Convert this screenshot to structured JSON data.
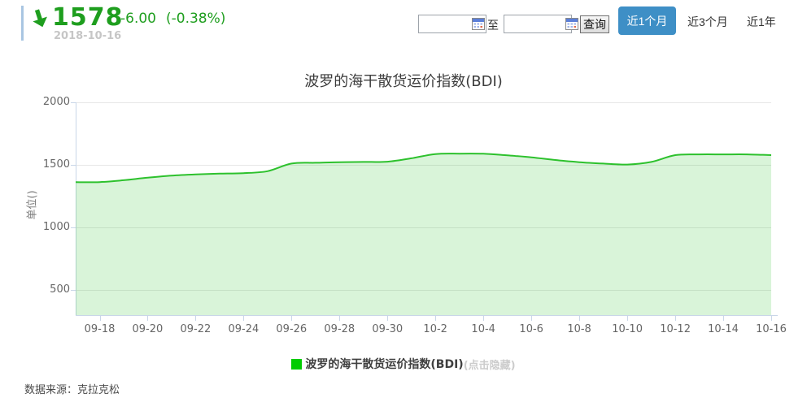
{
  "header": {
    "value": "1578",
    "change": "-6.00",
    "change_pct": "(-0.38%)",
    "date": "2018-10-16",
    "trend": "down",
    "green_color": "#1E9E1E"
  },
  "toolbar": {
    "date_from_value": "",
    "date_to_value": "",
    "to_label": "至",
    "query_label": "查询",
    "range_buttons": [
      {
        "label": "近1个月",
        "active": true
      },
      {
        "label": "近3个月",
        "active": false
      },
      {
        "label": "近1年",
        "active": false
      }
    ],
    "active_button_color": "#3E8FC6"
  },
  "chart_data": {
    "type": "area",
    "title": "波罗的海干散货运价指数(BDI)",
    "ylabel": "单位()",
    "x": [
      "09-17",
      "09-18",
      "09-19",
      "09-20",
      "09-21",
      "09-22",
      "09-23",
      "09-24",
      "09-25",
      "09-26",
      "09-27",
      "09-28",
      "09-29",
      "09-30",
      "10-1",
      "10-2",
      "10-3",
      "10-4",
      "10-5",
      "10-6",
      "10-7",
      "10-8",
      "10-9",
      "10-10",
      "10-11",
      "10-12",
      "10-13",
      "10-14",
      "10-15",
      "10-16"
    ],
    "values": [
      1362,
      1363,
      1378,
      1398,
      1414,
      1424,
      1430,
      1434,
      1450,
      1511,
      1517,
      1522,
      1524,
      1526,
      1553,
      1587,
      1590,
      1589,
      1576,
      1561,
      1539,
      1522,
      1511,
      1503,
      1524,
      1578,
      1584,
      1584,
      1584,
      1578
    ],
    "x_tick_labels": [
      "09-18",
      "09-20",
      "09-22",
      "09-24",
      "09-26",
      "09-28",
      "09-30",
      "10-2",
      "10-4",
      "10-6",
      "10-8",
      "10-10",
      "10-12",
      "10-14",
      "10-16"
    ],
    "yticks": [
      500,
      1000,
      1500,
      2000
    ],
    "ylim": [
      300,
      2000
    ],
    "grid": true,
    "legend_position": "bottom-center",
    "line_color": "#2DC12D",
    "fill_color": "rgba(45,193,45,0.18)",
    "legend": {
      "swatch_color": "#00CC00",
      "label": "波罗的海干散货运价指数(BDI)",
      "hint": "(点击隐藏)"
    }
  },
  "footer": {
    "source": "数据来源：克拉克松"
  }
}
